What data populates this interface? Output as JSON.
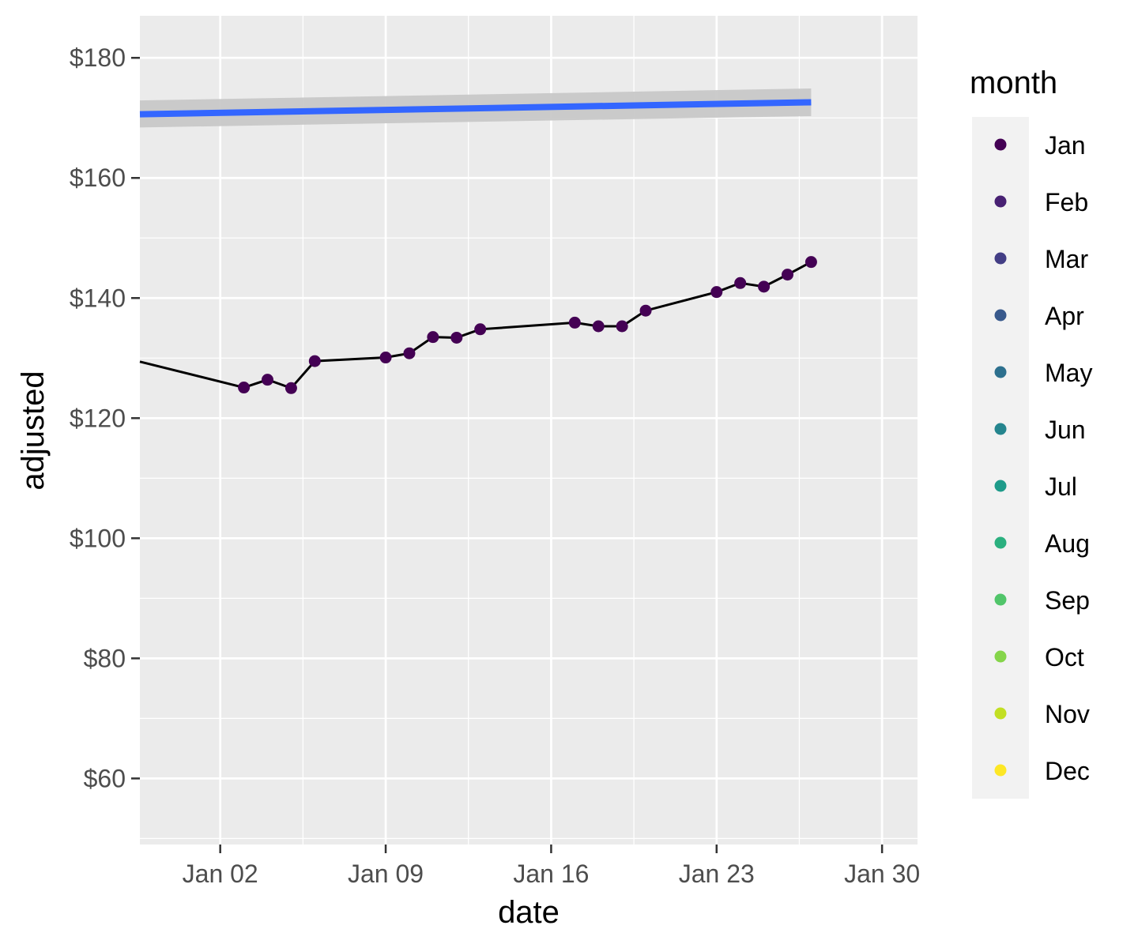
{
  "chart_data": {
    "type": "line",
    "xlabel": "date",
    "ylabel": "adjusted",
    "x_ticks": [
      "Jan 02",
      "Jan 09",
      "Jan 16",
      "Jan 23",
      "Jan 30"
    ],
    "y_ticks": [
      "$60",
      "$80",
      "$100",
      "$120",
      "$140",
      "$160",
      "$180"
    ],
    "xlim": [
      "2013-12-29.6",
      "2014-01-31.5"
    ],
    "ylim": [
      49,
      187
    ],
    "grid": true,
    "background": "#ebebeb",
    "series": [
      {
        "kind": "line+points",
        "line_color": "#000000",
        "point_color": "#440154",
        "points": [
          {
            "date": "2013-12-29.6",
            "adjusted": 129.4
          },
          {
            "date": "2014-01-03",
            "adjusted": 125.1
          },
          {
            "date": "2014-01-04",
            "adjusted": 126.4
          },
          {
            "date": "2014-01-05",
            "adjusted": 125.0
          },
          {
            "date": "2014-01-06",
            "adjusted": 129.5
          },
          {
            "date": "2014-01-09",
            "adjusted": 130.1
          },
          {
            "date": "2014-01-10",
            "adjusted": 130.8
          },
          {
            "date": "2014-01-11",
            "adjusted": 133.5
          },
          {
            "date": "2014-01-12",
            "adjusted": 133.4
          },
          {
            "date": "2014-01-13",
            "adjusted": 134.8
          },
          {
            "date": "2014-01-17",
            "adjusted": 135.9
          },
          {
            "date": "2014-01-18",
            "adjusted": 135.3
          },
          {
            "date": "2014-01-19",
            "adjusted": 135.3
          },
          {
            "date": "2014-01-20",
            "adjusted": 137.9
          },
          {
            "date": "2014-01-23",
            "adjusted": 141.0
          },
          {
            "date": "2014-01-24",
            "adjusted": 142.5
          },
          {
            "date": "2014-01-25",
            "adjusted": 141.9
          },
          {
            "date": "2014-01-26",
            "adjusted": 143.9
          },
          {
            "date": "2014-01-27",
            "adjusted": 146.0
          }
        ]
      },
      {
        "kind": "trend",
        "line_color": "#3366ff",
        "band_color": "#c8c8c8",
        "points": [
          {
            "date": "2013-12-29.6",
            "adjusted": 170.6,
            "lower": 168.4,
            "upper": 172.9
          },
          {
            "date": "2014-01-27",
            "adjusted": 172.6,
            "lower": 170.3,
            "upper": 174.9
          }
        ]
      }
    ],
    "legend": {
      "title": "month",
      "placement": "right",
      "items": [
        {
          "label": "Jan",
          "color": "#440154"
        },
        {
          "label": "Feb",
          "color": "#482173"
        },
        {
          "label": "Mar",
          "color": "#433E85"
        },
        {
          "label": "Apr",
          "color": "#38598C"
        },
        {
          "label": "May",
          "color": "#2D708E"
        },
        {
          "label": "Jun",
          "color": "#25858E"
        },
        {
          "label": "Jul",
          "color": "#1E9B8A"
        },
        {
          "label": "Aug",
          "color": "#2BB07F"
        },
        {
          "label": "Sep",
          "color": "#51C56A"
        },
        {
          "label": "Oct",
          "color": "#85D54A"
        },
        {
          "label": "Nov",
          "color": "#C2DF23"
        },
        {
          "label": "Dec",
          "color": "#FDE725"
        }
      ]
    }
  }
}
